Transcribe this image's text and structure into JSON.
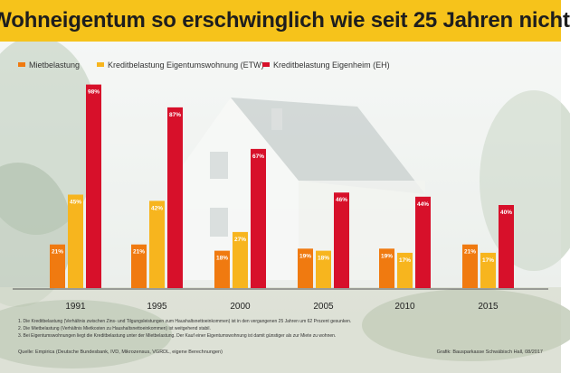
{
  "title": "Wohneigentum so erschwinglich wie seit 25 Jahren nicht",
  "colors": {
    "header_bg": "#f6c31b",
    "miet": "#f07a10",
    "etw": "#f7b51e",
    "eh": "#d7102a"
  },
  "chart_data": {
    "type": "bar",
    "title": "Wohneigentum so erschwinglich wie seit 25 Jahren nicht",
    "categories": [
      "1991",
      "1995",
      "2000",
      "2005",
      "2010",
      "2015"
    ],
    "series": [
      {
        "name": "Mietbelastung",
        "values": [
          21,
          21,
          18,
          19,
          19,
          21
        ],
        "labels": [
          "21%",
          "21%",
          "18%",
          "19%",
          "19%",
          "21%"
        ]
      },
      {
        "name": "Kreditbelastung Eigentumswohnung (ETW)",
        "values": [
          45,
          42,
          27,
          18,
          17,
          17
        ],
        "labels": [
          "45%",
          "42%",
          "27%",
          "18%",
          "17%",
          "17%"
        ]
      },
      {
        "name": "Kreditbelastung Eigenheim (EH)",
        "values": [
          98,
          87,
          67,
          46,
          44,
          40
        ],
        "labels": [
          "98%",
          "87%",
          "67%",
          "46%",
          "44%",
          "40%"
        ]
      }
    ],
    "ylim": [
      0,
      100
    ],
    "xlabel": "",
    "ylabel": "",
    "legend": "top-left"
  },
  "footnotes": [
    "1. Die Kreditbelastung (Verhältnis zwischen Zins- und Tilgungsleistungen zum Haushaltsnettoeinkommen) ist in den vergangenen 25 Jahren um 62 Prozent gesunken.",
    "2. Die Mietbelastung (Verhältnis Mietkosten zu Haushaltsnettoeinkommen) ist weitgehend stabil.",
    "3. Bei Eigentumswohnungen liegt die Kreditbelastung unter der Mietbelastung. Der Kauf einer Eigentumswohnung ist damit günstiger als zur Miete zu wohnen."
  ],
  "source": "Quelle: Empirica (Deutsche Bundesbank, IVD, Mikrozensus, VGRDL, eigene Berechnungen)",
  "credit": "Grafik: Bausparkasse Schwäbisch Hall, 08/2017"
}
